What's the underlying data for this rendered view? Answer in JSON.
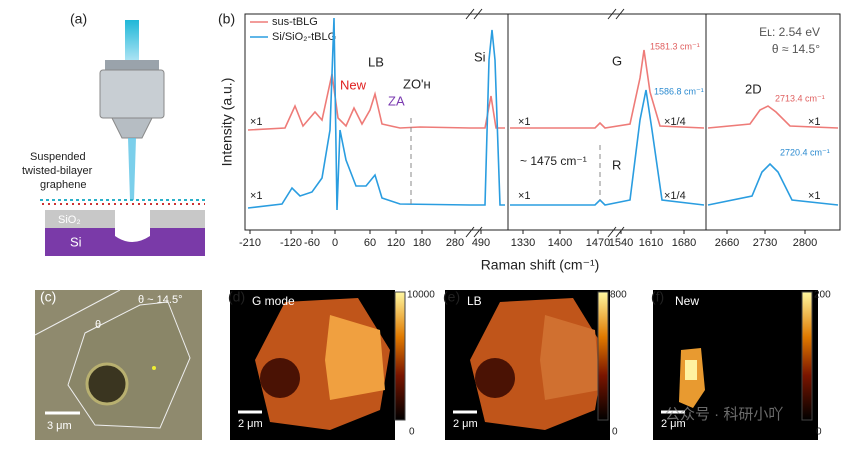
{
  "panel_a": {
    "label": "(a)",
    "sample_label": [
      "Suspended",
      "twisted-bilayer",
      "graphene"
    ],
    "substrate": "SiO₂",
    "base": "Si"
  },
  "panel_b": {
    "label": "(b)",
    "legend": [
      "sus-tBLG",
      "Si/SiO₂-tBLG"
    ],
    "y_label": "Intensity (a.u.)",
    "x_label": "Raman shift (cm⁻¹)",
    "info": [
      "Eʟ: 2.54 eV",
      "θ ≈ 14.5°"
    ],
    "peaks": {
      "lb": "LB",
      "new": "New",
      "za": "ZA",
      "zo": "ZO'ʜ",
      "si": "Si",
      "g": "G",
      "r": "R",
      "r_shift": "~ 1475 cm⁻¹",
      "d2": "2D",
      "g_red": "1581.3 cm⁻¹",
      "g_blue": "1586.8 cm⁻¹",
      "d2_red": "2713.4 cm⁻¹",
      "d2_blue": "2720.4 cm⁻¹"
    },
    "multipliers": {
      "x1": "×1",
      "x14": "×1/4"
    },
    "x_ticks": [
      "-210",
      "-120",
      "-60",
      "0",
      "60",
      "120",
      "180",
      "280",
      "490",
      "1330",
      "1400",
      "1470",
      "1540",
      "1610",
      "1680",
      "2660",
      "2730",
      "2800"
    ]
  },
  "panel_c": {
    "label": "(c)",
    "angle": "θ ~ 14.5°",
    "theta": "θ",
    "scale": "3 μm"
  },
  "panel_d": {
    "label": "(d)",
    "title": "G mode",
    "cbar_max": "10000",
    "cbar_min": "0",
    "scale": "2 μm"
  },
  "panel_e": {
    "label": "(e)",
    "title": "LB",
    "cbar_max": "800",
    "cbar_min": "0",
    "scale": "2 μm"
  },
  "panel_f": {
    "label": "(f)",
    "title": "New",
    "cbar_max": "200",
    "cbar_min": "0",
    "scale": "2 μm"
  },
  "watermark": "公众号 · 科研小吖"
}
